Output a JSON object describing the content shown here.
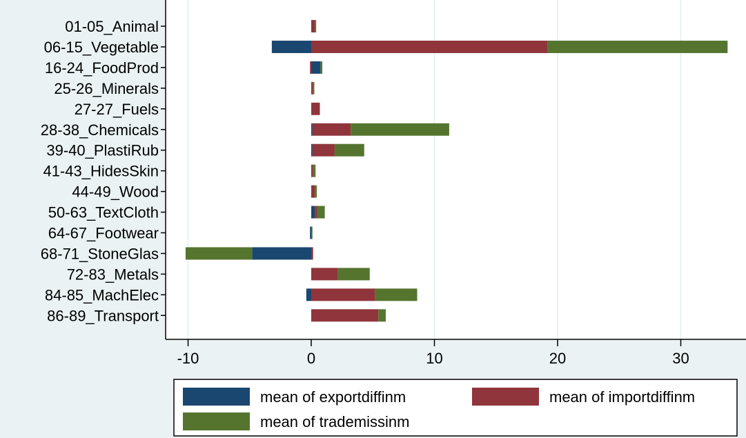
{
  "chart_data": {
    "type": "bar",
    "orientation": "horizontal",
    "stacking": "stacked (positive and negative values stacked separately from 0)",
    "categories": [
      "01-05_Animal",
      "06-15_Vegetable",
      "16-24_FoodProd",
      "25-26_Minerals",
      "27-27_Fuels",
      "28-38_Chemicals",
      "39-40_PlastiRub",
      "41-43_HidesSkin",
      "44-49_Wood",
      "50-63_TextCloth",
      "64-67_Footwear",
      "68-71_StoneGlas",
      "72-83_Metals",
      "84-85_MachElec",
      "86-89_Transport"
    ],
    "series": [
      {
        "name": "mean of exportdiffinm",
        "color": "#1a476f",
        "values": [
          0.05,
          -3.2,
          0.75,
          0.05,
          0.0,
          0.1,
          0.1,
          0.05,
          0.05,
          0.3,
          -0.1,
          -4.8,
          0.05,
          -0.4,
          0.05
        ]
      },
      {
        "name": "mean of importdiffinm",
        "color": "#90353b",
        "values": [
          0.25,
          19.2,
          -0.1,
          0.1,
          0.7,
          3.1,
          1.8,
          0.1,
          0.25,
          0.2,
          0.05,
          0.15,
          2.1,
          5.2,
          5.4
        ]
      },
      {
        "name": "mean of trademissinm",
        "color": "#55752f",
        "values": [
          0.1,
          14.6,
          0.15,
          0.1,
          0.0,
          8.0,
          2.4,
          0.2,
          0.15,
          0.6,
          0.05,
          -5.4,
          2.6,
          3.4,
          0.6
        ]
      }
    ],
    "x_axis": {
      "range": [
        -11.5,
        35.5
      ],
      "ticks": [
        -10,
        0,
        10,
        20,
        30
      ],
      "tick_labels": [
        "-10",
        "0",
        "10",
        "20",
        "30"
      ],
      "gridlines": true
    },
    "legend": {
      "position": "bottom",
      "entries": [
        "mean of exportdiffinm",
        "mean of importdiffinm",
        "mean of trademissinm"
      ]
    }
  }
}
